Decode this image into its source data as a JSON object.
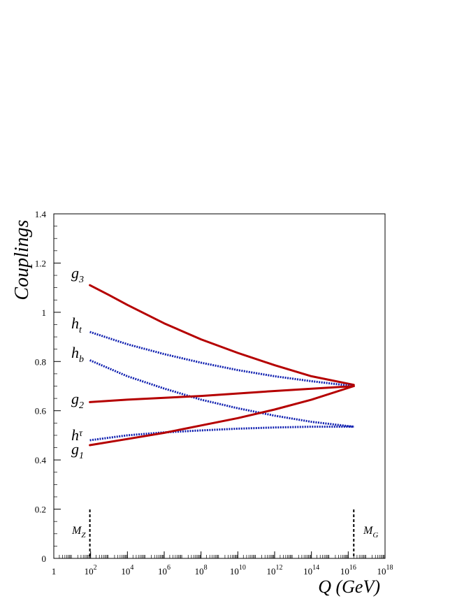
{
  "chart_data": {
    "type": "line",
    "xlabel": "Q (GeV)",
    "ylabel": "Couplings",
    "x_scale": "log10",
    "xlim": [
      1,
      1e+18
    ],
    "ylim": [
      0,
      1.4
    ],
    "grid": false,
    "x_ticks": [
      {
        "base": "1",
        "exp": ""
      },
      {
        "base": "10",
        "exp": "2"
      },
      {
        "base": "10",
        "exp": "4"
      },
      {
        "base": "10",
        "exp": "6"
      },
      {
        "base": "10",
        "exp": "8"
      },
      {
        "base": "10",
        "exp": "10"
      },
      {
        "base": "10",
        "exp": "12"
      },
      {
        "base": "10",
        "exp": "14"
      },
      {
        "base": "10",
        "exp": "16"
      },
      {
        "base": "10",
        "exp": "18"
      }
    ],
    "y_ticks": [
      "0",
      "0.2",
      "0.4",
      "0.6",
      "0.8",
      "1",
      "1.2",
      "1.4"
    ],
    "series": [
      {
        "name": "g3",
        "label_main": "g",
        "label_sub": "3",
        "style": "solid",
        "color": "#b50000",
        "x": [
          91.2,
          1000.0,
          10000.0,
          1000000.0,
          100000000.0,
          10000000000.0,
          1000000000000.0,
          100000000000000.0,
          2e+16
        ],
        "y": [
          1.11,
          1.07,
          1.03,
          0.955,
          0.89,
          0.835,
          0.785,
          0.74,
          0.705
        ]
      },
      {
        "name": "ht",
        "label_main": "h",
        "label_sub": "t",
        "style": "dotted",
        "color": "#1020b0",
        "x": [
          91.2,
          10000.0,
          1000000.0,
          100000000.0,
          10000000000.0,
          1000000000000.0,
          100000000000000.0,
          2e+16
        ],
        "y": [
          0.92,
          0.87,
          0.83,
          0.795,
          0.765,
          0.74,
          0.72,
          0.7
        ]
      },
      {
        "name": "hb",
        "label_main": "h",
        "label_sub": "b",
        "style": "dotted",
        "color": "#1020b0",
        "x": [
          91.2,
          10000.0,
          1000000.0,
          100000000.0,
          10000000000.0,
          1000000000000.0,
          100000000000000.0,
          2e+16
        ],
        "y": [
          0.805,
          0.74,
          0.69,
          0.645,
          0.61,
          0.58,
          0.555,
          0.535
        ]
      },
      {
        "name": "g2",
        "label_main": "g",
        "label_sub": "2",
        "style": "solid",
        "color": "#b50000",
        "x": [
          91.2,
          10000.0,
          100000000.0,
          1000000000000.0,
          2e+16
        ],
        "y": [
          0.635,
          0.645,
          0.66,
          0.68,
          0.7
        ]
      },
      {
        "name": "htau",
        "label_main": "h",
        "label_sub": "τ",
        "style": "dotted",
        "color": "#1020b0",
        "x": [
          91.2,
          10000.0,
          1000000.0,
          100000000.0,
          10000000000.0,
          1000000000000.0,
          100000000000000.0,
          2e+16
        ],
        "y": [
          0.48,
          0.5,
          0.512,
          0.52,
          0.527,
          0.532,
          0.535,
          0.535
        ]
      },
      {
        "name": "g1",
        "label_main": "g",
        "label_sub": "1",
        "style": "solid",
        "color": "#b50000",
        "x": [
          91.2,
          10000.0,
          1000000.0,
          100000000.0,
          10000000000.0,
          1000000000000.0,
          100000000000000.0,
          2e+16
        ],
        "y": [
          0.46,
          0.485,
          0.51,
          0.54,
          0.57,
          0.605,
          0.645,
          0.7
        ]
      }
    ],
    "annotations": [
      {
        "id": "mz",
        "main": "M",
        "sub": "Z",
        "x": 91.2,
        "style": "dashed"
      },
      {
        "id": "mg",
        "main": "M",
        "sub": "G",
        "x": 2e+16,
        "style": "dashed"
      }
    ]
  }
}
